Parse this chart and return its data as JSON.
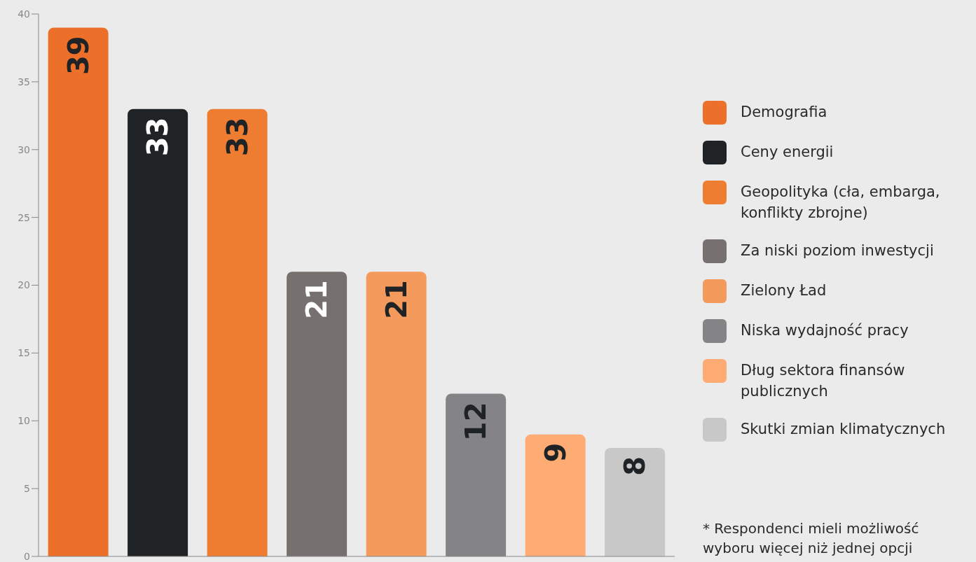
{
  "chart_data": {
    "type": "bar",
    "stacked": true,
    "categories": [
      null,
      null,
      null,
      null,
      null,
      null,
      null,
      null
    ],
    "series": [
      {
        "name": "Demografia",
        "color": "#ec6f2a",
        "values": [
          39,
          null,
          null,
          null,
          null,
          null,
          null,
          null
        ]
      },
      {
        "name": "Ceny energii",
        "color": "#1f2326",
        "values": [
          null,
          33,
          null,
          null,
          null,
          null,
          null,
          null
        ]
      },
      {
        "name": "Geopolityka (cła, embarga, konflikty zbrojne)",
        "color": "#ee7d32",
        "values": [
          null,
          null,
          33,
          null,
          null,
          null,
          null,
          null
        ]
      },
      {
        "name": "Za niski poziom inwestycji",
        "color": "#76716f",
        "values": [
          null,
          null,
          null,
          21,
          null,
          null,
          null,
          null
        ]
      },
      {
        "name": "Zielony Ład",
        "color": "#f49a5c",
        "values": [
          null,
          null,
          null,
          null,
          21,
          null,
          null,
          null
        ]
      },
      {
        "name": "Niska wydajność pracy",
        "color": "#848487",
        "values": [
          null,
          null,
          null,
          null,
          null,
          12,
          null,
          null
        ]
      },
      {
        "name": "Dług sektora finansów publicznych",
        "color": "#ffab74",
        "values": [
          null,
          null,
          null,
          null,
          null,
          null,
          9,
          null
        ]
      },
      {
        "name": "Skutki zmian klimatycznych",
        "color": "#c8c8c8",
        "values": [
          null,
          null,
          null,
          null,
          null,
          null,
          null,
          8
        ]
      }
    ],
    "ylim": [
      0,
      40
    ],
    "yticks": [
      0,
      5,
      10,
      15,
      20,
      25,
      30,
      35,
      40
    ],
    "grid": false,
    "legend": "right",
    "data_labels": true,
    "annotations": [
      "* Respondenci mieli możliwość wyboru więcej niż jednej opcji"
    ]
  }
}
